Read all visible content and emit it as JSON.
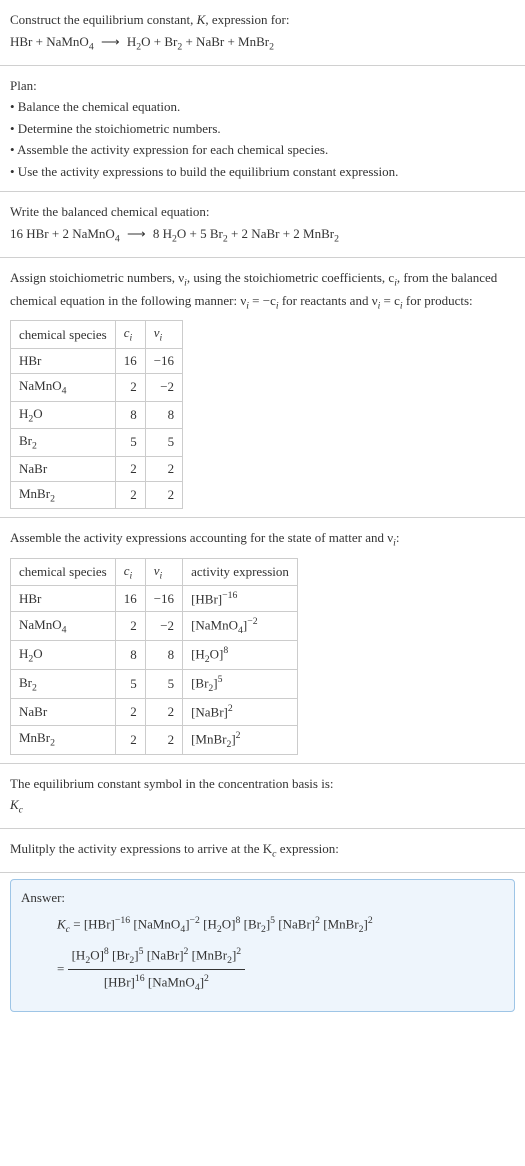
{
  "sec1": {
    "l1": "Construct the equilibrium constant, K, expression for:",
    "l2_a": "HBr + NaMnO",
    "l2_b": "4",
    "l2_c": "H",
    "l2_d": "2",
    "l2_e": "O + Br",
    "l2_f": "2",
    "l2_g": " + NaBr + MnBr",
    "l2_h": "2"
  },
  "sec2": {
    "title": "Plan:",
    "b1": "• Balance the chemical equation.",
    "b2": "• Determine the stoichiometric numbers.",
    "b3": "• Assemble the activity expression for each chemical species.",
    "b4": "• Use the activity expressions to build the equilibrium constant expression."
  },
  "sec3": {
    "t": "Write the balanced chemical equation:",
    "eq_a": "16 HBr + 2 NaMnO",
    "eq_b": "4",
    "eq_c": "8 H",
    "eq_d": "2",
    "eq_e": "O + 5 Br",
    "eq_f": "2",
    "eq_g": " + 2 NaBr + 2 MnBr",
    "eq_h": "2"
  },
  "sec4": {
    "p1a": "Assign stoichiometric numbers, ν",
    "p1b": "i",
    "p1c": ", using the stoichiometric coefficients, c",
    "p1d": "i",
    "p1e": ", from the balanced chemical equation in the following manner: ν",
    "p1f": "i",
    "p1g": " = −c",
    "p1h": "i",
    "p1i": " for reactants and ν",
    "p1j": "i",
    "p1k": " = c",
    "p1l": "i",
    "p1m": " for products:",
    "h1": "chemical species",
    "h2": "c",
    "h2s": "i",
    "h3": "ν",
    "h3s": "i",
    "rows": [
      {
        "sp": "HBr",
        "sub": "",
        "c": "16",
        "v": "−16"
      },
      {
        "sp": "NaMnO",
        "sub": "4",
        "c": "2",
        "v": "−2"
      },
      {
        "sp": "H",
        "sub": "2",
        "tail": "O",
        "c": "8",
        "v": "8"
      },
      {
        "sp": "Br",
        "sub": "2",
        "c": "5",
        "v": "5"
      },
      {
        "sp": "NaBr",
        "sub": "",
        "c": "2",
        "v": "2"
      },
      {
        "sp": "MnBr",
        "sub": "2",
        "c": "2",
        "v": "2"
      }
    ]
  },
  "sec5": {
    "p": "Assemble the activity expressions accounting for the state of matter and ν",
    "psub": "i",
    "ptail": ":",
    "h1": "chemical species",
    "h2": "c",
    "h2s": "i",
    "h3": "ν",
    "h3s": "i",
    "h4": "activity expression",
    "rows": [
      {
        "sp": "HBr",
        "sub": "",
        "c": "16",
        "v": "−16",
        "ae_a": "[HBr]",
        "ae_e": "−16"
      },
      {
        "sp": "NaMnO",
        "sub": "4",
        "c": "2",
        "v": "−2",
        "ae_a": "[NaMnO",
        "ae_sub": "4",
        "ae_b": "]",
        "ae_e": "−2"
      },
      {
        "sp": "H",
        "sub": "2",
        "tail": "O",
        "c": "8",
        "v": "8",
        "ae_a": "[H",
        "ae_sub": "2",
        "ae_b": "O]",
        "ae_e": "8"
      },
      {
        "sp": "Br",
        "sub": "2",
        "c": "5",
        "v": "5",
        "ae_a": "[Br",
        "ae_sub": "2",
        "ae_b": "]",
        "ae_e": "5"
      },
      {
        "sp": "NaBr",
        "sub": "",
        "c": "2",
        "v": "2",
        "ae_a": "[NaBr]",
        "ae_e": "2"
      },
      {
        "sp": "MnBr",
        "sub": "2",
        "c": "2",
        "v": "2",
        "ae_a": "[MnBr",
        "ae_sub": "2",
        "ae_b": "]",
        "ae_e": "2"
      }
    ]
  },
  "sec6": {
    "l1": "The equilibrium constant symbol in the concentration basis is:",
    "l2": "K",
    "l2s": "c"
  },
  "sec7": {
    "l1": "Mulitply the activity expressions to arrive at the K",
    "l1s": "c",
    "l1t": " expression:"
  },
  "answer": {
    "label": "Answer:",
    "lhs": "K",
    "lhs_s": "c",
    "t1": "[HBr]",
    "e1": "−16",
    "t2a": "[NaMnO",
    "t2s": "4",
    "t2b": "]",
    "e2": "−2",
    "t3a": "[H",
    "t3s": "2",
    "t3b": "O]",
    "e3": "8",
    "t4a": "[Br",
    "t4s": "2",
    "t4b": "]",
    "e4": "5",
    "t5": "[NaBr]",
    "e5": "2",
    "t6a": "[MnBr",
    "t6s": "2",
    "t6b": "]",
    "e6": "2",
    "num_a": "[H",
    "num_as": "2",
    "num_ab": "O]",
    "num_ae": "8",
    "num_b": "[Br",
    "num_bs": "2",
    "num_bb": "]",
    "num_be": "5",
    "num_c": "[NaBr]",
    "num_ce": "2",
    "num_d": "[MnBr",
    "num_ds": "2",
    "num_db": "]",
    "num_de": "2",
    "den_a": "[HBr]",
    "den_ae": "16",
    "den_b": "[NaMnO",
    "den_bs": "4",
    "den_bb": "]",
    "den_be": "2"
  },
  "colors": {
    "border": "#d0d0d0",
    "table_border": "#cccccc",
    "answer_bg": "#eef5fc",
    "answer_border": "#9ec5e6",
    "text": "#333333"
  }
}
